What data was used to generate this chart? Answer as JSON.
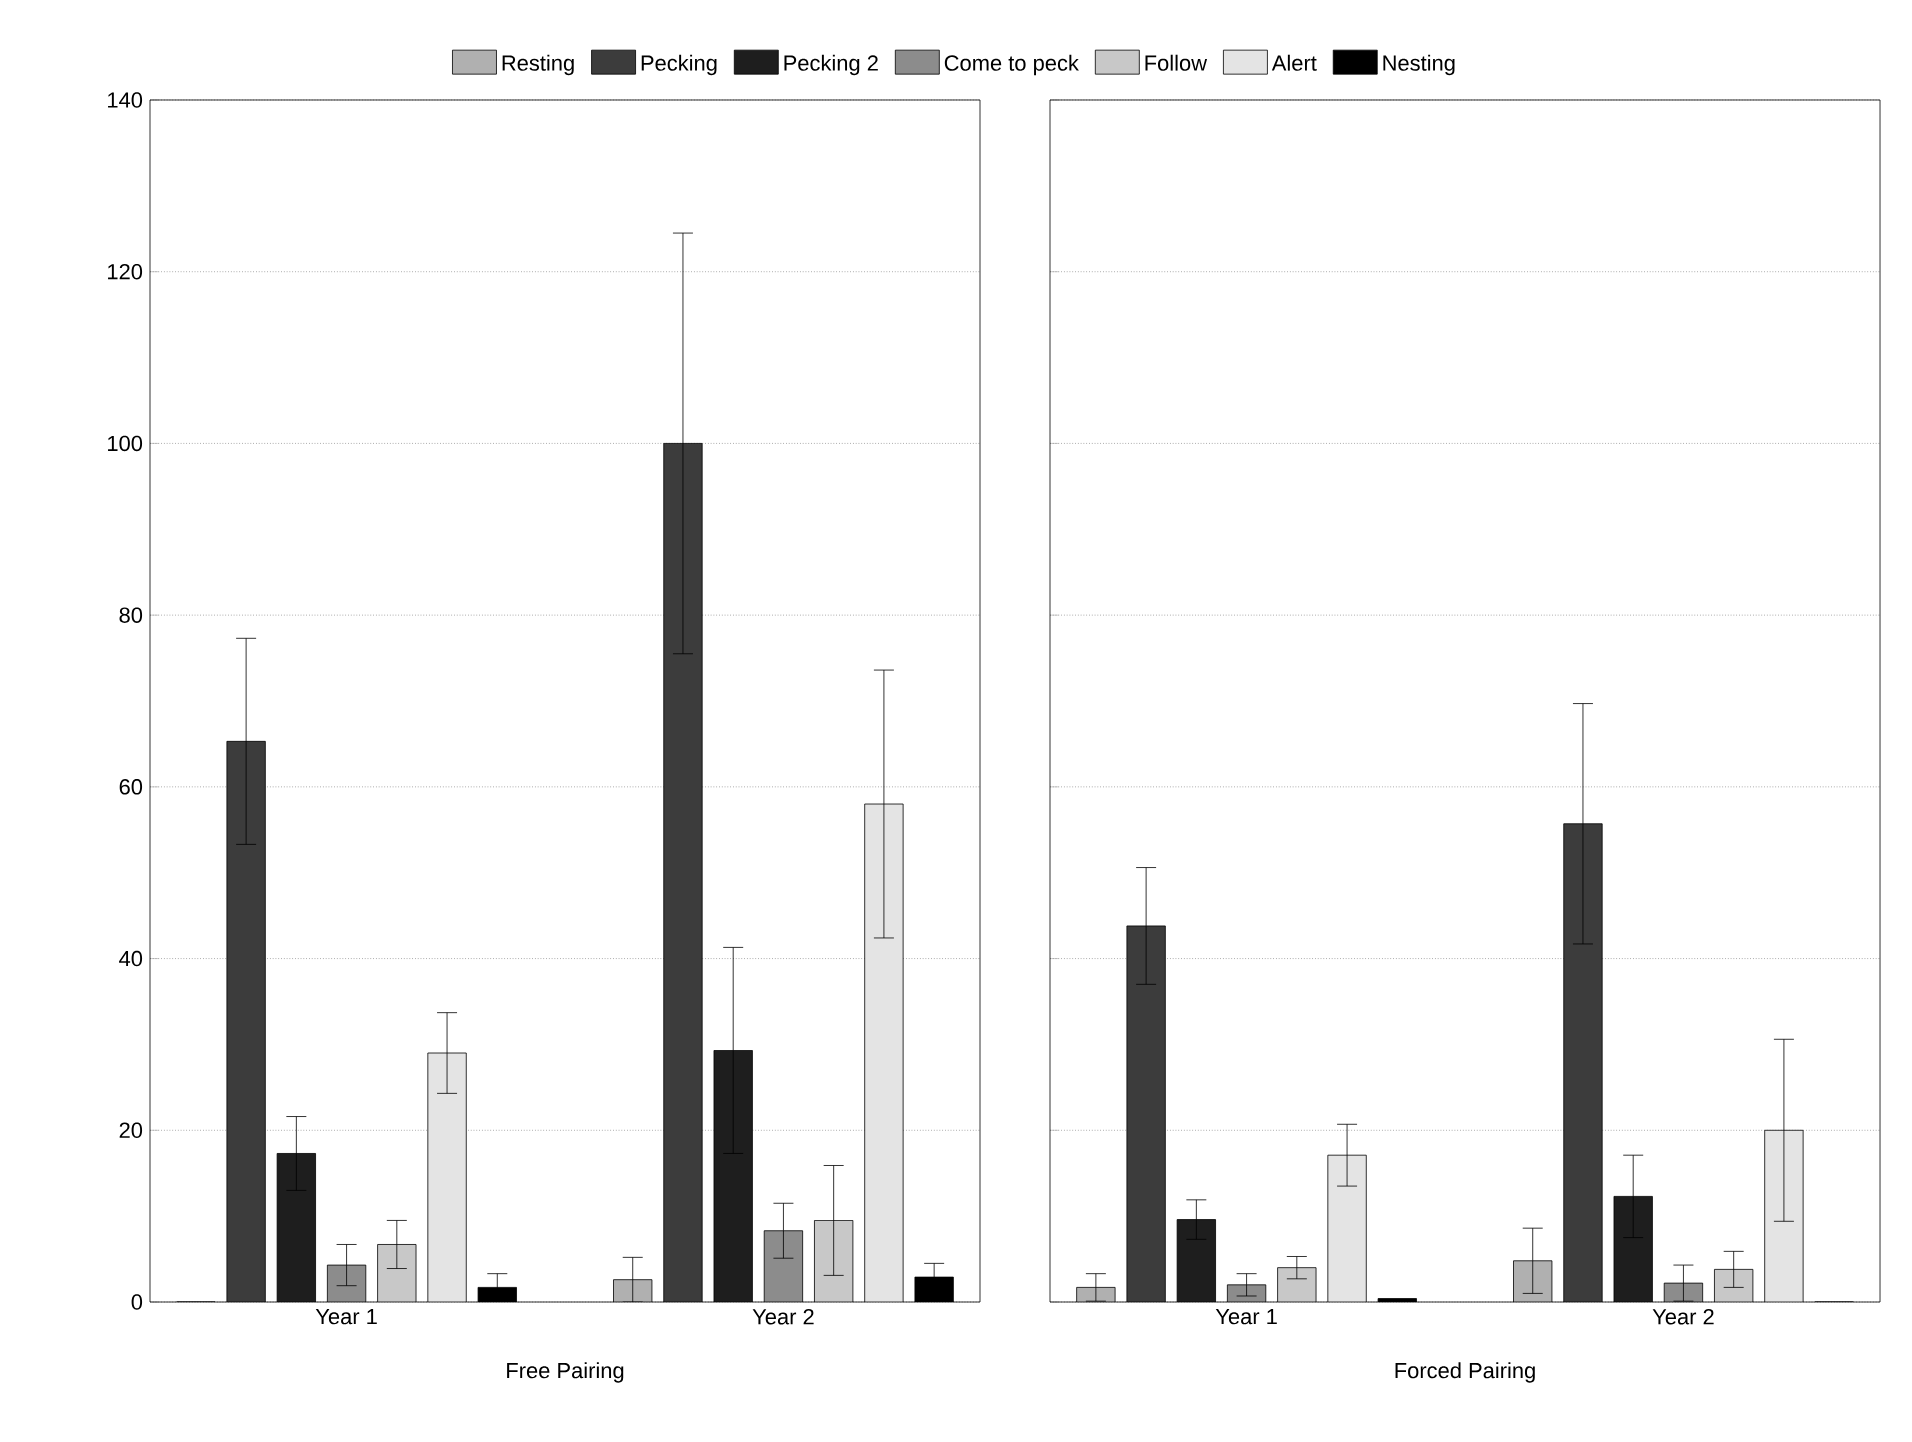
{
  "chart_data": [
    {
      "type": "bar",
      "xlabel": "Free Pairing",
      "categories": [
        "Year 1",
        "Year 2"
      ],
      "ylim": [
        0,
        140
      ],
      "yticks": [
        0,
        20,
        40,
        60,
        80,
        100,
        120,
        140
      ],
      "grid": "y",
      "legend": "top",
      "series": [
        {
          "name": "Resting",
          "color": "#b0b0b0",
          "values": [
            0,
            2.6
          ],
          "errors": [
            null,
            2.6
          ]
        },
        {
          "name": "Pecking",
          "color": "#3c3c3c",
          "values": [
            65.3,
            100
          ],
          "errors": [
            12,
            24.5
          ]
        },
        {
          "name": "Pecking 2",
          "color": "#1e1e1e",
          "values": [
            17.3,
            29.3
          ],
          "errors": [
            4.3,
            12
          ]
        },
        {
          "name": "Come to peck",
          "color": "#8c8c8c",
          "values": [
            4.3,
            8.3
          ],
          "errors": [
            2.4,
            3.2
          ]
        },
        {
          "name": "Follow",
          "color": "#c8c8c8",
          "values": [
            6.7,
            9.5
          ],
          "errors": [
            2.8,
            6.4
          ]
        },
        {
          "name": "Alert",
          "color": "#e4e4e4",
          "values": [
            29,
            58
          ],
          "errors": [
            4.7,
            15.6
          ]
        },
        {
          "name": "Nesting",
          "color": "#000000",
          "values": [
            1.7,
            2.9
          ],
          "errors": [
            1.6,
            1.6
          ]
        }
      ]
    },
    {
      "type": "bar",
      "xlabel": "Forced Pairing",
      "categories": [
        "Year 1",
        "Year 2"
      ],
      "ylim": [
        0,
        140
      ],
      "yticks": [
        0,
        20,
        40,
        60,
        80,
        100,
        120,
        140
      ],
      "grid": "y",
      "tick_labels": "x",
      "series": [
        {
          "color": "#b0b0b0",
          "values": [
            1.7,
            4.8
          ],
          "errors": [
            1.6,
            3.8
          ]
        },
        {
          "color": "#3c3c3c",
          "values": [
            43.8,
            55.7
          ],
          "errors": [
            6.8,
            14
          ]
        },
        {
          "color": "#1e1e1e",
          "values": [
            9.6,
            12.3
          ],
          "errors": [
            2.3,
            4.8
          ]
        },
        {
          "color": "#8c8c8c",
          "values": [
            2,
            2.2
          ],
          "errors": [
            1.3,
            2.1
          ]
        },
        {
          "color": "#c8c8c8",
          "values": [
            4,
            3.8
          ],
          "errors": [
            1.3,
            2.1
          ]
        },
        {
          "color": "#e4e4e4",
          "values": [
            17.1,
            20
          ],
          "errors": [
            3.6,
            10.6
          ]
        },
        {
          "color": "#000000",
          "values": [
            0.4,
            0
          ],
          "errors": [
            null,
            null
          ]
        }
      ]
    }
  ]
}
